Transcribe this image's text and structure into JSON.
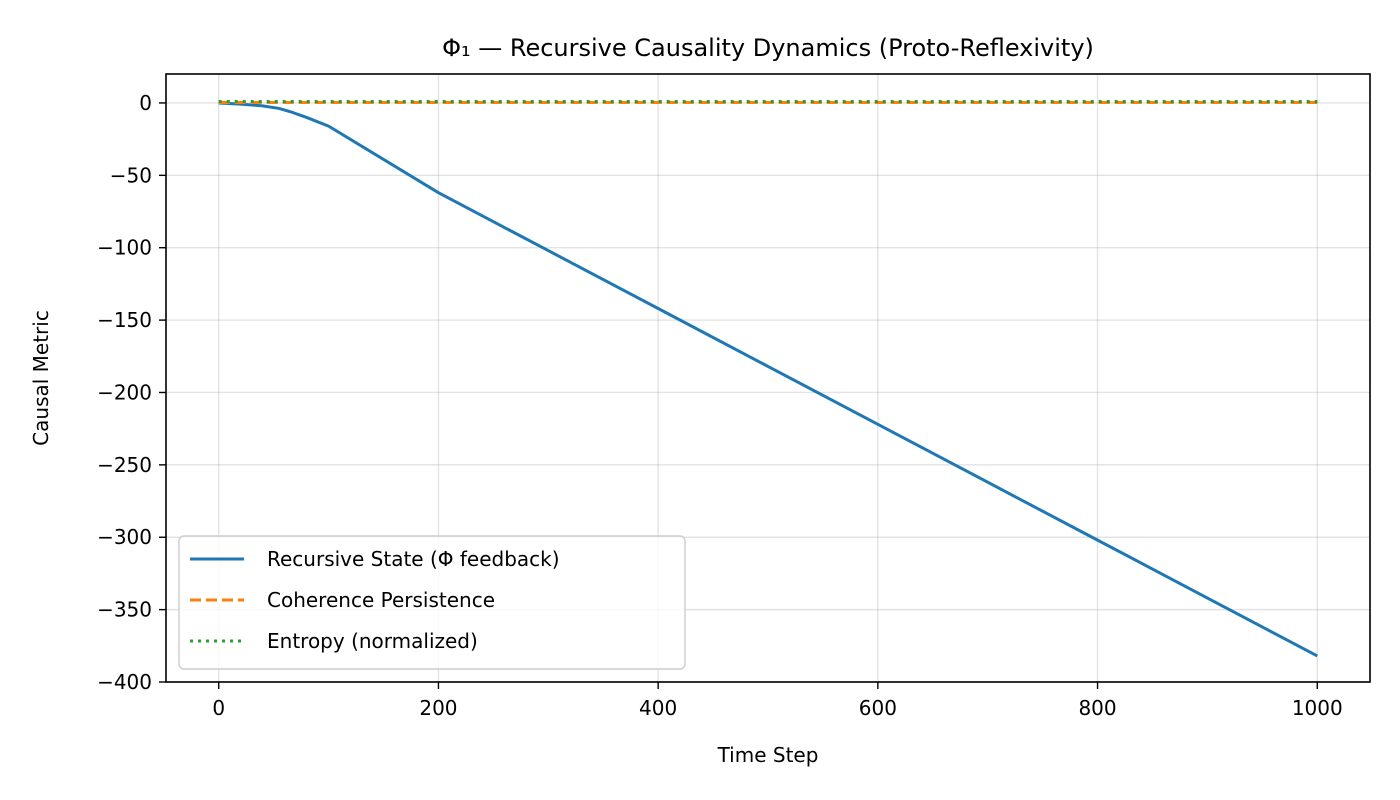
{
  "chart_data": {
    "type": "line",
    "title": "Φ₁ — Recursive Causality Dynamics (Proto-Reflexivity)",
    "xlabel": "Time Step",
    "ylabel": "Causal Metric",
    "xlim": [
      -48,
      1048
    ],
    "ylim": [
      -400,
      20
    ],
    "xticks": [
      0,
      200,
      400,
      600,
      800,
      1000
    ],
    "yticks": [
      0,
      -50,
      -100,
      -150,
      -200,
      -250,
      -300,
      -350,
      -400
    ],
    "xtick_labels": [
      "0",
      "200",
      "400",
      "600",
      "800",
      "1000"
    ],
    "ytick_labels": [
      "0",
      "−50",
      "−100",
      "−150",
      "−200",
      "−250",
      "−300",
      "−350",
      "−400"
    ],
    "grid": true,
    "legend_position": "lower-left",
    "series": [
      {
        "name": "Recursive State (Φ feedback)",
        "color": "#1f77b4",
        "style": "solid",
        "x": [
          0,
          20,
          40,
          55,
          65,
          80,
          100,
          200,
          300,
          400,
          500,
          600,
          700,
          800,
          900,
          1000
        ],
        "y": [
          0,
          -0.8,
          -2,
          -3.8,
          -6,
          -10,
          -16,
          -62,
          -102,
          -142,
          -182,
          -222,
          -262,
          -302,
          -342,
          -382
        ]
      },
      {
        "name": "Coherence Persistence",
        "color": "#ff7f0e",
        "style": "dashed",
        "x": [
          0,
          1000
        ],
        "y": [
          0.3,
          0.3
        ]
      },
      {
        "name": "Entropy (normalized)",
        "color": "#2ca02c",
        "style": "dotted",
        "x": [
          0,
          1000
        ],
        "y": [
          1,
          1
        ]
      }
    ]
  }
}
